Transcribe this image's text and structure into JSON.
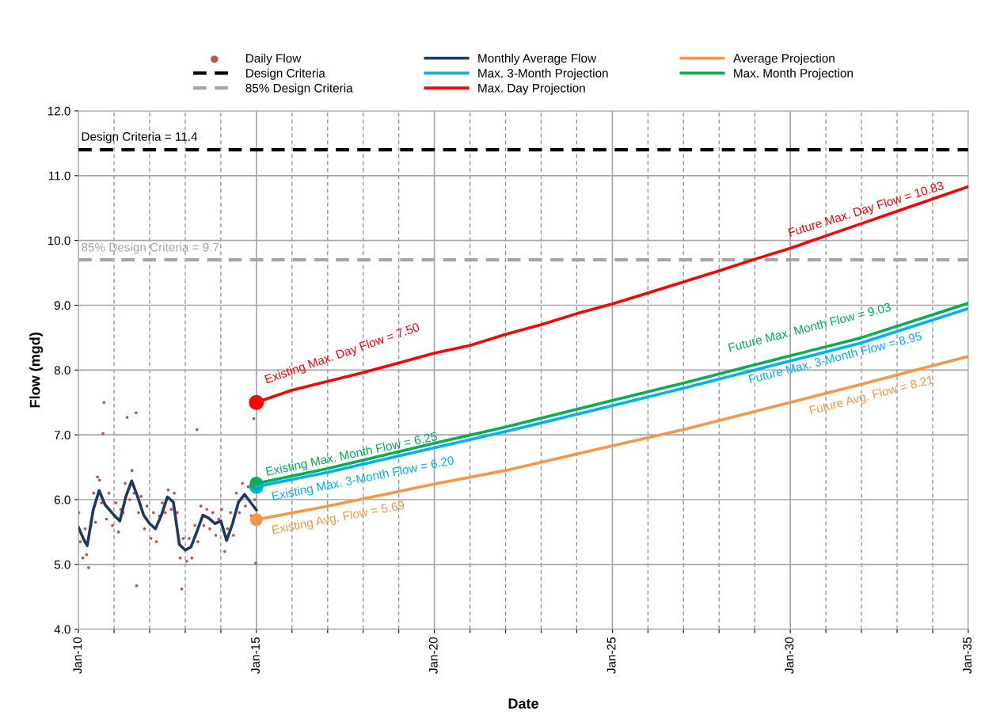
{
  "chart_data": {
    "type": "line",
    "xlabel": "Date",
    "ylabel": "Flow (mgd)",
    "xlim": [
      "2010-01-01",
      "2035-01-01"
    ],
    "ylim": [
      4.0,
      12.0
    ],
    "yticks": [
      {
        "value": 4.0,
        "label": "4.0"
      },
      {
        "value": 5.0,
        "label": "5.0"
      },
      {
        "value": 6.0,
        "label": "6.0"
      },
      {
        "value": 7.0,
        "label": "7.0"
      },
      {
        "value": 8.0,
        "label": "8.0"
      },
      {
        "value": 9.0,
        "label": "9.0"
      },
      {
        "value": 10.0,
        "label": "10.0"
      },
      {
        "value": 11.0,
        "label": "11.0"
      },
      {
        "value": 12.0,
        "label": "12.0"
      }
    ],
    "xticks": [
      {
        "value": "2010-01-01",
        "label": "Jan-10"
      },
      {
        "value": "2011-01-01",
        "label": null
      },
      {
        "value": "2012-01-01",
        "label": null
      },
      {
        "value": "2013-01-01",
        "label": null
      },
      {
        "value": "2014-01-01",
        "label": null
      },
      {
        "value": "2015-01-01",
        "label": "Jan-15"
      },
      {
        "value": "2016-01-01",
        "label": null
      },
      {
        "value": "2017-01-01",
        "label": null
      },
      {
        "value": "2018-01-01",
        "label": null
      },
      {
        "value": "2019-01-01",
        "label": null
      },
      {
        "value": "2020-01-01",
        "label": "Jan-20"
      },
      {
        "value": "2021-01-01",
        "label": null
      },
      {
        "value": "2022-01-01",
        "label": null
      },
      {
        "value": "2023-01-01",
        "label": null
      },
      {
        "value": "2024-01-01",
        "label": null
      },
      {
        "value": "2025-01-01",
        "label": "Jan-25"
      },
      {
        "value": "2026-01-01",
        "label": null
      },
      {
        "value": "2027-01-01",
        "label": null
      },
      {
        "value": "2028-01-01",
        "label": null
      },
      {
        "value": "2029-01-01",
        "label": null
      },
      {
        "value": "2030-01-01",
        "label": "Jan-30"
      },
      {
        "value": "2031-01-01",
        "label": null
      },
      {
        "value": "2032-01-01",
        "label": null
      },
      {
        "value": "2033-01-01",
        "label": null
      },
      {
        "value": "2034-01-01",
        "label": null
      },
      {
        "value": "2035-01-01",
        "label": "Jan-35"
      }
    ],
    "grid": true,
    "legend": "top",
    "series": [
      {
        "name": "Daily Flow",
        "type": "scatter",
        "color": "#c0504d",
        "x": [
          "2010-01-05",
          "2010-01-20",
          "2010-02-15",
          "2010-03-10",
          "2010-03-25",
          "2010-04-15",
          "2010-05-10",
          "2010-06-05",
          "2010-06-25",
          "2010-07-15",
          "2010-08-05",
          "2010-08-25",
          "2010-09-10",
          "2010-09-20",
          "2010-10-15",
          "2010-11-10",
          "2010-12-15",
          "2011-01-20",
          "2011-02-15",
          "2011-03-10",
          "2011-04-05",
          "2011-04-25",
          "2011-05-15",
          "2011-06-10",
          "2011-07-05",
          "2011-07-25",
          "2011-08-15",
          "2011-08-20",
          "2011-09-10",
          "2011-10-05",
          "2011-11-10",
          "2011-12-05",
          "2012-01-15",
          "2012-02-10",
          "2012-03-10",
          "2012-04-10",
          "2012-05-10",
          "2012-06-10",
          "2012-07-10",
          "2012-08-10",
          "2012-09-10",
          "2012-10-10",
          "2012-11-10",
          "2012-11-25",
          "2012-12-10",
          "2013-01-15",
          "2013-02-10",
          "2013-03-10",
          "2013-04-10",
          "2013-05-01",
          "2013-05-10",
          "2013-06-10",
          "2013-07-10",
          "2013-08-10",
          "2013-09-10",
          "2013-10-10",
          "2013-11-10",
          "2013-12-10",
          "2014-01-10",
          "2014-02-10",
          "2014-03-10",
          "2014-04-10",
          "2014-05-10",
          "2014-06-10",
          "2014-07-10",
          "2014-08-10",
          "2014-09-10",
          "2014-10-10",
          "2014-11-10",
          "2014-12-05",
          "2014-12-15",
          "2014-12-25"
        ],
        "values": [
          5.8,
          5.35,
          5.1,
          5.55,
          5.15,
          4.95,
          5.6,
          6.1,
          5.65,
          6.35,
          6.3,
          5.95,
          7.02,
          7.5,
          5.7,
          6.1,
          5.6,
          5.95,
          5.5,
          5.85,
          5.8,
          6.25,
          7.27,
          6.0,
          6.45,
          6.1,
          7.34,
          4.67,
          5.8,
          6.05,
          5.55,
          5.9,
          5.4,
          5.8,
          5.35,
          5.75,
          5.95,
          5.8,
          6.15,
          5.85,
          6.1,
          5.8,
          5.1,
          4.62,
          5.4,
          5.05,
          5.4,
          5.1,
          5.6,
          7.08,
          5.35,
          5.9,
          5.6,
          5.85,
          5.55,
          5.8,
          5.45,
          5.7,
          5.85,
          5.2,
          5.55,
          5.8,
          5.45,
          6.1,
          5.8,
          6.25,
          5.9,
          6.2,
          5.75,
          7.25,
          6.0,
          5.02
        ]
      },
      {
        "name": "Design Criteria",
        "line_style": "dashed",
        "color": "#000000",
        "x": [
          "2010-01-01",
          "2035-01-01"
        ],
        "values": [
          11.4,
          11.4
        ]
      },
      {
        "name": "85% Design Criteria",
        "line_style": "dashed",
        "color": "#a6a6a6",
        "x": [
          "2010-01-01",
          "2035-01-01"
        ],
        "values": [
          9.7,
          9.7
        ]
      },
      {
        "name": "Monthly Average Flow",
        "color": "#1f3864",
        "x": [
          "2010-01",
          "2010-03",
          "2010-04",
          "2010-06",
          "2010-08",
          "2010-10",
          "2011-01",
          "2011-03",
          "2011-05",
          "2011-07",
          "2011-09",
          "2011-11",
          "2012-01",
          "2012-03",
          "2012-05",
          "2012-07",
          "2012-09",
          "2012-11",
          "2013-01",
          "2013-03",
          "2013-05",
          "2013-07",
          "2013-09",
          "2013-11",
          "2014-01",
          "2014-03",
          "2014-05",
          "2014-07",
          "2014-09",
          "2014-11",
          "2015-01"
        ],
        "values": [
          5.57,
          5.37,
          5.29,
          5.84,
          6.14,
          5.92,
          5.76,
          5.67,
          6.04,
          6.29,
          6.04,
          5.76,
          5.63,
          5.55,
          5.76,
          6.04,
          5.96,
          5.31,
          5.22,
          5.27,
          5.51,
          5.76,
          5.71,
          5.63,
          5.67,
          5.37,
          5.63,
          5.96,
          6.08,
          5.96,
          5.84
        ]
      },
      {
        "name": "Max. 3-Month Projection",
        "color": "#00b0f0",
        "x": [
          "2015-01-01",
          "2017-01-01",
          "2020-01-01",
          "2022-01-01",
          "2025-01-01",
          "2027-01-01",
          "2030-01-01",
          "2032-01-01",
          "2035-01-01"
        ],
        "values": [
          6.2,
          6.42,
          6.8,
          7.05,
          7.45,
          7.72,
          8.14,
          8.42,
          8.95
        ]
      },
      {
        "name": "Max. Day Projection",
        "color": "#ff0000",
        "x": [
          "2015-01-01",
          "2016-01-01",
          "2018-01-01",
          "2020-01-01",
          "2021-01-01",
          "2022-01-01",
          "2023-01-01",
          "2024-01-01",
          "2025-01-01",
          "2026-01-01",
          "2027-01-01",
          "2028-01-01",
          "2029-01-01",
          "2030-01-01",
          "2031-01-01",
          "2032-01-01",
          "2033-01-01",
          "2034-01-01",
          "2035-01-01"
        ],
        "values": [
          7.5,
          7.69,
          7.96,
          8.26,
          8.38,
          8.55,
          8.7,
          8.87,
          9.02,
          9.19,
          9.36,
          9.53,
          9.71,
          9.88,
          10.07,
          10.26,
          10.45,
          10.64,
          10.83
        ]
      },
      {
        "name": "Average Projection",
        "color": "#f79646",
        "x": [
          "2015-01-01",
          "2017-01-01",
          "2020-01-01",
          "2022-01-01",
          "2025-01-01",
          "2027-01-01",
          "2030-01-01",
          "2032-01-01",
          "2035-01-01"
        ],
        "values": [
          5.69,
          5.9,
          6.24,
          6.45,
          6.83,
          7.08,
          7.5,
          7.78,
          8.21
        ]
      },
      {
        "name": "Max. Month Projection",
        "color": "#00b050",
        "x": [
          "2015-01-01",
          "2017-01-01",
          "2020-01-01",
          "2022-01-01",
          "2025-01-01",
          "2027-01-01",
          "2030-01-01",
          "2032-01-01",
          "2035-01-01"
        ],
        "values": [
          6.25,
          6.48,
          6.87,
          7.12,
          7.53,
          7.8,
          8.22,
          8.5,
          9.03
        ]
      },
      {
        "type": "scatter",
        "marker": "circle",
        "color": "#ff0000",
        "x": [
          "2015-01-01"
        ],
        "values": [
          7.5
        ]
      },
      {
        "type": "scatter",
        "marker": "circle",
        "color": "#00b0f0",
        "x": [
          "2015-01-01"
        ],
        "values": [
          6.2
        ]
      },
      {
        "type": "scatter",
        "marker": "circle",
        "color": "#00b050",
        "x": [
          "2015-01-01"
        ],
        "values": [
          6.25
        ]
      },
      {
        "type": "scatter",
        "marker": "circle",
        "color": "#f79646",
        "x": [
          "2015-01-01"
        ],
        "values": [
          5.69
        ]
      }
    ],
    "annotations": [
      "Design Criteria = 11.4",
      "85% Design Criteria = 9.7",
      "Existing Max. Day Flow = 7.50",
      "Future Max. Day Flow = 10.83",
      "Existing Max. Month Flow = 6.25",
      "Existing Max. 3-Month Flow = 6.20",
      "Existing Avg. Flow = 5.69",
      "Future Max. Month Flow = 9.03",
      "Future Max. 3-Month Flow = 8.95",
      "Future Avg. Flow = 8.21"
    ]
  }
}
